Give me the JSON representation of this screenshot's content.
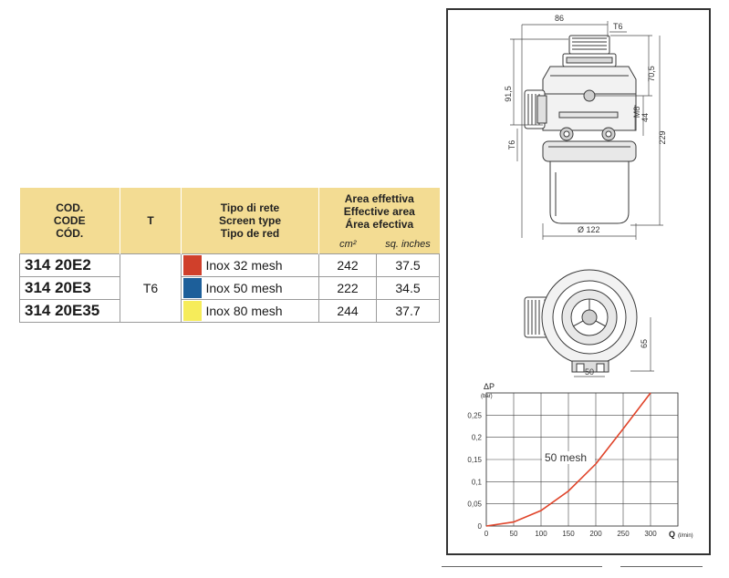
{
  "table": {
    "header": {
      "code": [
        "COD.",
        "CODE",
        "CÓD."
      ],
      "t": "T",
      "screen_type": [
        "Tipo di rete",
        "Screen type",
        "Tipo de red"
      ],
      "effective_area": [
        "Area effettiva",
        "Effective area",
        "Área efectiva"
      ],
      "unit_cm2": "cm²",
      "unit_sq_inches": "sq. inches"
    },
    "t_value": "T6",
    "rows": [
      {
        "code": "314 20E2",
        "color": "#d0402b",
        "mesh": "Inox 32 mesh",
        "cm2": "242",
        "sq_inches": "37.5"
      },
      {
        "code": "314 20E3",
        "color": "#1d5f9a",
        "mesh": "Inox 50 mesh",
        "cm2": "222",
        "sq_inches": "34.5"
      },
      {
        "code": "314 20E35",
        "color": "#f6ec5a",
        "mesh": "Inox 80 mesh",
        "cm2": "244",
        "sq_inches": "37.7"
      }
    ]
  },
  "drawing": {
    "dim_86": "86",
    "dim_t6_top": "T6",
    "dim_91_5": "91,5",
    "dim_70_5": "70,5",
    "dim_m8": "M8",
    "dim_44": "44",
    "dim_229": "229",
    "dim_t6_side": "T6",
    "dim_dia_122": "Ø 122",
    "dim_65": "65",
    "dim_50": "50"
  },
  "chart_data": {
    "type": "line",
    "ylabel": "ΔP",
    "yunit": "(bar)",
    "xlabel": "Q",
    "xunit": "(l/min)",
    "xlim": [
      0,
      350
    ],
    "ylim": [
      0,
      0.3
    ],
    "x_ticks": [
      "0",
      "50",
      "100",
      "150",
      "200",
      "250",
      "300"
    ],
    "y_ticks": [
      "0",
      "0,05",
      "0,1",
      "0,15",
      "0,2",
      "0,25"
    ],
    "grid": true,
    "series": [
      {
        "name": "50 mesh",
        "color": "#e0442a",
        "x": [
          0,
          50,
          100,
          150,
          200,
          250,
          300
        ],
        "y": [
          0,
          0.009,
          0.035,
          0.079,
          0.14,
          0.219,
          0.3
        ]
      }
    ]
  }
}
